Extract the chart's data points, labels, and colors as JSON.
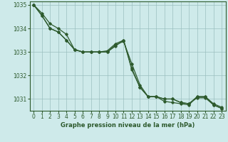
{
  "title": "Graphe pression niveau de la mer (hPa)",
  "background_color": "#ceeaea",
  "grid_color": "#9bbfbf",
  "line_color": "#2d5a2d",
  "series": [
    {
      "x": [
        0,
        1,
        2,
        3,
        4,
        5,
        6,
        7,
        8,
        9,
        10,
        11,
        12,
        13,
        14,
        15,
        16,
        17,
        18,
        19,
        20,
        21,
        22,
        23
      ],
      "y": [
        1035.0,
        1034.65,
        1034.2,
        1034.0,
        1033.75,
        1033.1,
        1033.0,
        1033.0,
        1033.0,
        1033.0,
        1033.25,
        1033.5,
        1032.3,
        1031.5,
        1031.1,
        1031.1,
        1030.9,
        1030.85,
        1030.8,
        1030.75,
        1031.1,
        1031.1,
        1030.8,
        1030.65
      ]
    },
    {
      "x": [
        0,
        1,
        2,
        3,
        4,
        5,
        6,
        7,
        8,
        9,
        10,
        11,
        12,
        13,
        14,
        15,
        16,
        17,
        18,
        19,
        20,
        21,
        22,
        23
      ],
      "y": [
        1035.0,
        1034.55,
        1034.0,
        1033.85,
        1033.5,
        1033.1,
        1033.0,
        1033.0,
        1033.0,
        1033.0,
        1033.3,
        1033.45,
        1032.5,
        1031.6,
        1031.1,
        1031.1,
        1031.0,
        1031.0,
        1030.85,
        1030.8,
        1031.1,
        1031.1,
        1030.75,
        1030.6
      ]
    },
    {
      "x": [
        0,
        1,
        2,
        3,
        4,
        5,
        6,
        7,
        8,
        9,
        10,
        11,
        12,
        13,
        14,
        15,
        16,
        17,
        18,
        19,
        20,
        21,
        22,
        23
      ],
      "y": [
        1035.0,
        1034.55,
        1034.0,
        1033.85,
        1033.5,
        1033.1,
        1033.0,
        1033.0,
        1033.0,
        1033.0,
        1033.3,
        1033.45,
        1032.5,
        1031.6,
        1031.1,
        1031.1,
        1031.0,
        1031.0,
        1030.85,
        1030.8,
        1031.1,
        1031.1,
        1030.75,
        1030.6
      ]
    }
  ],
  "xlim": [
    -0.5,
    23.5
  ],
  "ylim": [
    1030.5,
    1035.15
  ],
  "yticks": [
    1031,
    1032,
    1033,
    1034,
    1035
  ],
  "xticks": [
    0,
    1,
    2,
    3,
    4,
    5,
    6,
    7,
    8,
    9,
    10,
    11,
    12,
    13,
    14,
    15,
    16,
    17,
    18,
    19,
    20,
    21,
    22,
    23
  ],
  "tick_fontsize": 5.5,
  "xlabel_fontsize": 6.0
}
